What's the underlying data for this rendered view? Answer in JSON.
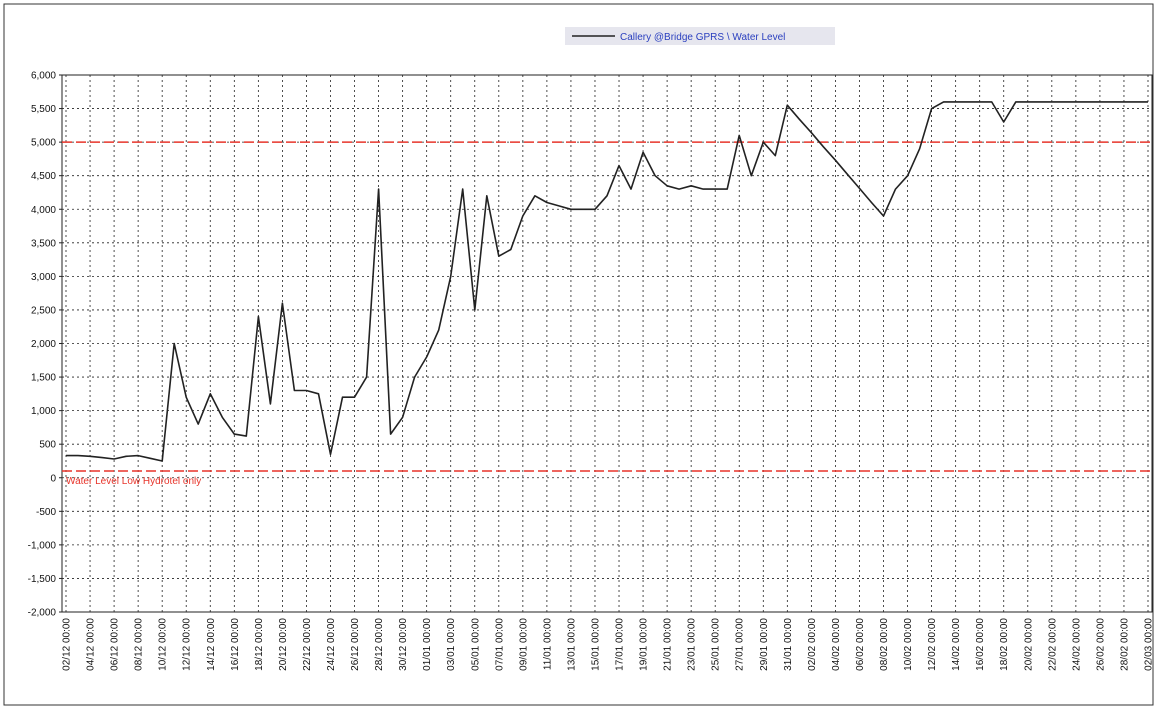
{
  "chart_data": {
    "type": "line",
    "categories": [
      "02/12 00:00",
      null,
      "04/12 00:00",
      null,
      "06/12 00:00",
      null,
      "08/12 00:00",
      null,
      "10/12 00:00",
      null,
      "12/12 00:00",
      null,
      "14/12 00:00",
      null,
      "16/12 00:00",
      null,
      "18/12 00:00",
      null,
      "20/12 00:00",
      null,
      "22/12 00:00",
      null,
      "24/12 00:00",
      null,
      "26/12 00:00",
      null,
      "28/12 00:00",
      null,
      "30/12 00:00",
      null,
      "01/01 00:00",
      null,
      "03/01 00:00",
      null,
      "05/01 00:00",
      null,
      "07/01 00:00",
      null,
      "09/01 00:00",
      null,
      "11/01 00:00",
      null,
      "13/01 00:00",
      null,
      "15/01 00:00",
      null,
      "17/01 00:00",
      null,
      "19/01 00:00",
      null,
      "21/01 00:00",
      null,
      "23/01 00:00",
      null,
      "25/01 00:00",
      null,
      "27/01 00:00",
      null,
      "29/01 00:00",
      null,
      "31/01 00:00",
      null,
      "02/02 00:00",
      null,
      "04/02 00:00",
      null,
      "06/02 00:00",
      null,
      "08/02 00:00",
      null,
      "10/02 00:00",
      null,
      "12/02 00:00",
      null,
      "14/02 00:00",
      null,
      "16/02 00:00",
      null,
      "18/02 00:00",
      null,
      "20/02 00:00",
      null,
      "22/02 00:00",
      null,
      "24/02 00:00",
      null,
      "26/02 00:00",
      null,
      "28/02 00:00",
      null,
      "02/03 00:00"
    ],
    "series": [
      {
        "name": "Callery @Bridge GPRS \\ Water Level",
        "color": "#222222",
        "values": [
          330,
          330,
          320,
          300,
          280,
          320,
          330,
          290,
          250,
          2000,
          1200,
          800,
          1250,
          900,
          650,
          620,
          2400,
          1100,
          2600,
          1300,
          1300,
          1250,
          350,
          1200,
          1200,
          1500,
          4300,
          650,
          900,
          1500,
          1800,
          2200,
          3000,
          4300,
          2500,
          4200,
          3300,
          3400,
          3900,
          4200,
          4100,
          4050,
          4000,
          4000,
          4000,
          4200,
          4650,
          4300,
          4850,
          4500,
          4350,
          4300,
          4350,
          4300,
          4300,
          4300,
          5100,
          4500,
          5000,
          4800,
          5550,
          5340,
          5140,
          4930,
          4730,
          4520,
          4310,
          4100,
          3900,
          4300,
          4500,
          4900,
          5500,
          5600,
          5600,
          5600,
          5600,
          5600,
          5300,
          5600,
          5600,
          5600,
          5600,
          5600,
          5600,
          5600,
          5600,
          5600,
          5600,
          5600,
          5600
        ]
      }
    ],
    "ylim": [
      -2000,
      6000
    ],
    "yticks": [
      {
        "value": 6000,
        "label": "6,000"
      },
      {
        "value": 5500,
        "label": "5,500"
      },
      {
        "value": 5000,
        "label": "5,000"
      },
      {
        "value": 4500,
        "label": "4,500"
      },
      {
        "value": 4000,
        "label": "4,000"
      },
      {
        "value": 3500,
        "label": "3,500"
      },
      {
        "value": 3000,
        "label": "3,000"
      },
      {
        "value": 2500,
        "label": "2,500"
      },
      {
        "value": 2000,
        "label": "2,000"
      },
      {
        "value": 1500,
        "label": "1,500"
      },
      {
        "value": 1000,
        "label": "1,000"
      },
      500,
      0,
      -500,
      {
        "value": -1000,
        "label": "-1,000"
      },
      {
        "value": -1500,
        "label": "-1,500"
      },
      {
        "value": -2000,
        "label": "-2,000"
      }
    ],
    "grid": true,
    "thresholds": [
      {
        "value": 5000,
        "color": "#e8342a"
      },
      {
        "value": 100,
        "color": "#e8342a",
        "label": "Water Level Low Hydrotel only"
      }
    ]
  }
}
